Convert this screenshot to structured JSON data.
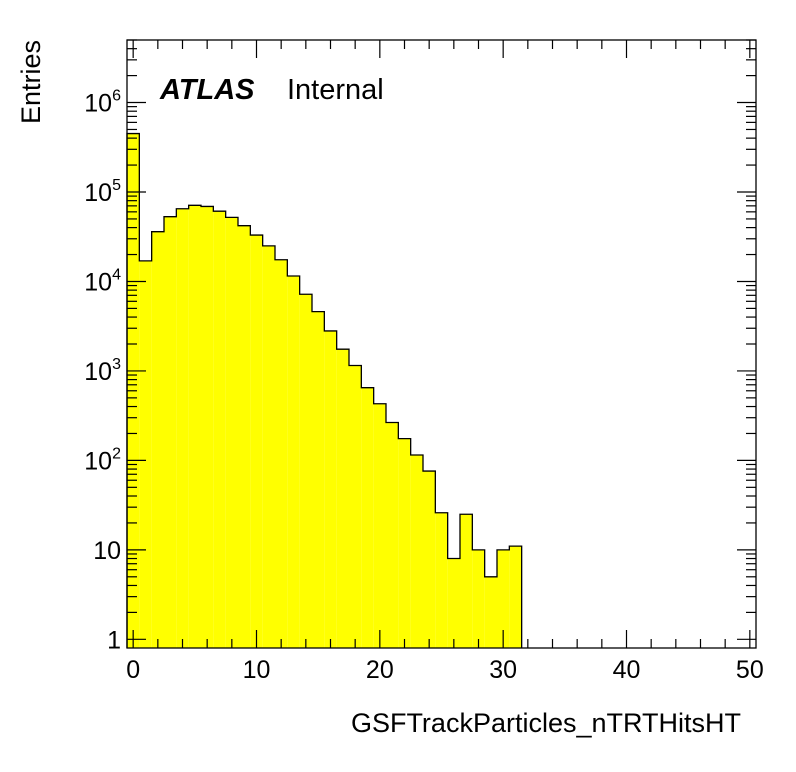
{
  "chart_data": {
    "type": "histogram",
    "xlabel": "GSFTrackParticles_nTRTHitsHT",
    "ylabel": "Entries",
    "label_atlas": "ATLAS",
    "label_status": "Internal",
    "xlim": [
      -0.5,
      50.5
    ],
    "ylim": [
      0.8,
      5000000
    ],
    "yscale": "log",
    "bin_width": 1,
    "bin_start": -0.5,
    "fill_color": "#ffff00",
    "line_color": "#000000",
    "values": [
      450000,
      17000,
      36000,
      53000,
      65000,
      71000,
      69000,
      61000,
      52000,
      42000,
      33000,
      25000,
      17500,
      11500,
      7200,
      4600,
      2800,
      1750,
      1150,
      650,
      430,
      265,
      175,
      115,
      76,
      26,
      8,
      25,
      10,
      5,
      10,
      11
    ],
    "x_ticks": [
      {
        "value": 0,
        "label": "0"
      },
      {
        "value": 10,
        "label": "10"
      },
      {
        "value": 20,
        "label": "20"
      },
      {
        "value": 30,
        "label": "30"
      },
      {
        "value": 40,
        "label": "40"
      },
      {
        "value": 50,
        "label": "50"
      }
    ],
    "y_ticks": [
      {
        "value": 1,
        "base": "1",
        "exp": ""
      },
      {
        "value": 10,
        "base": "10",
        "exp": ""
      },
      {
        "value": 100,
        "base": "10",
        "exp": "2"
      },
      {
        "value": 1000,
        "base": "10",
        "exp": "3"
      },
      {
        "value": 10000,
        "base": "10",
        "exp": "4"
      },
      {
        "value": 100000,
        "base": "10",
        "exp": "5"
      },
      {
        "value": 1000000,
        "base": "10",
        "exp": "6"
      }
    ]
  }
}
